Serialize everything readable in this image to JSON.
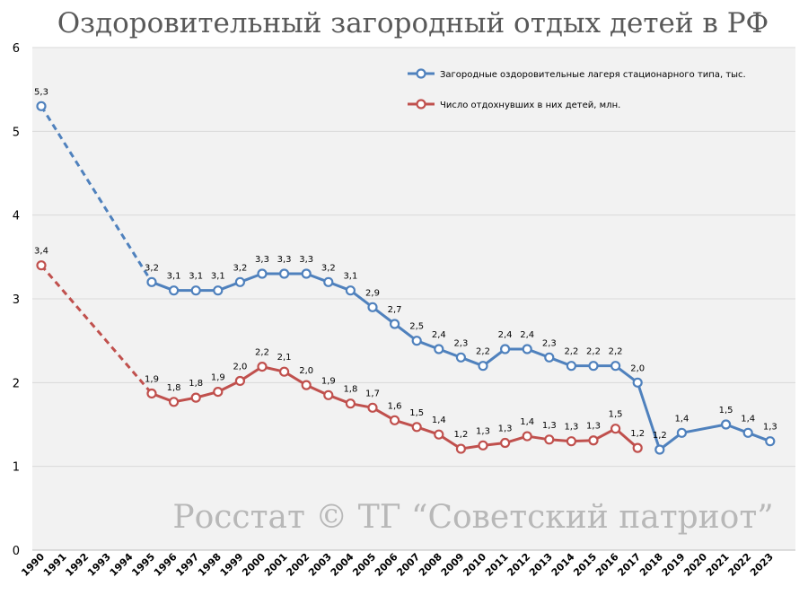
{
  "chart_data": {
    "type": "line",
    "title": "Оздоровительный загородный отдых детей в РФ",
    "watermark": "Росстат © ТГ “Советский патриот”",
    "x": [
      1990,
      1991,
      1992,
      1993,
      1994,
      1995,
      1996,
      1997,
      1998,
      1999,
      2000,
      2001,
      2002,
      2003,
      2004,
      2005,
      2006,
      2007,
      2008,
      2009,
      2010,
      2011,
      2012,
      2013,
      2014,
      2015,
      2016,
      2017,
      2018,
      2019,
      2020,
      2021,
      2022,
      2023
    ],
    "ylim": [
      0,
      6
    ],
    "yticks": [
      "0",
      "1",
      "2",
      "3",
      "4",
      "5",
      "6"
    ],
    "grid": true,
    "legend_position": "top-right",
    "series": [
      {
        "name": "Загородные оздоровительные лагеря стационарного типа, тыс.",
        "color": "#4f81bd",
        "points": [
          {
            "x": 1990,
            "y": 5.3,
            "label": "5,3"
          },
          {
            "x": 1995,
            "y": 3.2,
            "label": "3,2"
          },
          {
            "x": 1996,
            "y": 3.1,
            "label": "3,1"
          },
          {
            "x": 1997,
            "y": 3.1,
            "label": "3,1"
          },
          {
            "x": 1998,
            "y": 3.1,
            "label": "3,1"
          },
          {
            "x": 1999,
            "y": 3.2,
            "label": "3,2"
          },
          {
            "x": 2000,
            "y": 3.3,
            "label": "3,3"
          },
          {
            "x": 2001,
            "y": 3.3,
            "label": "3,3"
          },
          {
            "x": 2002,
            "y": 3.3,
            "label": "3,3"
          },
          {
            "x": 2003,
            "y": 3.2,
            "label": "3,2"
          },
          {
            "x": 2004,
            "y": 3.1,
            "label": "3,1"
          },
          {
            "x": 2005,
            "y": 2.9,
            "label": "2,9"
          },
          {
            "x": 2006,
            "y": 2.7,
            "label": "2,7"
          },
          {
            "x": 2007,
            "y": 2.5,
            "label": "2,5"
          },
          {
            "x": 2008,
            "y": 2.4,
            "label": "2,4"
          },
          {
            "x": 2009,
            "y": 2.3,
            "label": "2,3"
          },
          {
            "x": 2010,
            "y": 2.2,
            "label": "2,2"
          },
          {
            "x": 2011,
            "y": 2.4,
            "label": "2,4"
          },
          {
            "x": 2012,
            "y": 2.4,
            "label": "2,4"
          },
          {
            "x": 2013,
            "y": 2.3,
            "label": "2,3"
          },
          {
            "x": 2014,
            "y": 2.2,
            "label": "2,2"
          },
          {
            "x": 2015,
            "y": 2.2,
            "label": "2,2"
          },
          {
            "x": 2016,
            "y": 2.2,
            "label": "2,2"
          },
          {
            "x": 2017,
            "y": 2.0,
            "label": "2,0"
          },
          {
            "x": 2018,
            "y": 1.2,
            "label": "1,2"
          },
          {
            "x": 2019,
            "y": 1.4,
            "label": "1,4"
          },
          {
            "x": 2021,
            "y": 1.5,
            "label": "1,5"
          },
          {
            "x": 2022,
            "y": 1.4,
            "label": "1,4"
          },
          {
            "x": 2023,
            "y": 1.3,
            "label": "1,3"
          }
        ],
        "dashed_segments": [
          [
            1990,
            1995
          ]
        ],
        "gaps": [
          [
            2019,
            2021
          ]
        ]
      },
      {
        "name": "Число отдохнувших в них детей, млн.",
        "color": "#c0504d",
        "points": [
          {
            "x": 1990,
            "y": 3.4,
            "label": "3,4"
          },
          {
            "x": 1995,
            "y": 1.87,
            "label": "1,9"
          },
          {
            "x": 1996,
            "y": 1.77,
            "label": "1,8"
          },
          {
            "x": 1997,
            "y": 1.82,
            "label": "1,8"
          },
          {
            "x": 1998,
            "y": 1.89,
            "label": "1,9"
          },
          {
            "x": 1999,
            "y": 2.02,
            "label": "2,0"
          },
          {
            "x": 2000,
            "y": 2.19,
            "label": "2,2"
          },
          {
            "x": 2001,
            "y": 2.13,
            "label": "2,1"
          },
          {
            "x": 2002,
            "y": 1.97,
            "label": "2,0"
          },
          {
            "x": 2003,
            "y": 1.85,
            "label": "1,9"
          },
          {
            "x": 2004,
            "y": 1.75,
            "label": "1,8"
          },
          {
            "x": 2005,
            "y": 1.7,
            "label": "1,7"
          },
          {
            "x": 2006,
            "y": 1.55,
            "label": "1,6"
          },
          {
            "x": 2007,
            "y": 1.47,
            "label": "1,5"
          },
          {
            "x": 2008,
            "y": 1.38,
            "label": "1,4"
          },
          {
            "x": 2009,
            "y": 1.21,
            "label": "1,2"
          },
          {
            "x": 2010,
            "y": 1.25,
            "label": "1,3"
          },
          {
            "x": 2011,
            "y": 1.28,
            "label": "1,3"
          },
          {
            "x": 2012,
            "y": 1.36,
            "label": "1,4"
          },
          {
            "x": 2013,
            "y": 1.32,
            "label": "1,3"
          },
          {
            "x": 2014,
            "y": 1.3,
            "label": "1,3"
          },
          {
            "x": 2015,
            "y": 1.31,
            "label": "1,3"
          },
          {
            "x": 2016,
            "y": 1.45,
            "label": "1,5"
          },
          {
            "x": 2017,
            "y": 1.22,
            "label": "1,2"
          }
        ],
        "dashed_segments": [
          [
            1990,
            1995
          ]
        ],
        "gaps": []
      }
    ]
  }
}
